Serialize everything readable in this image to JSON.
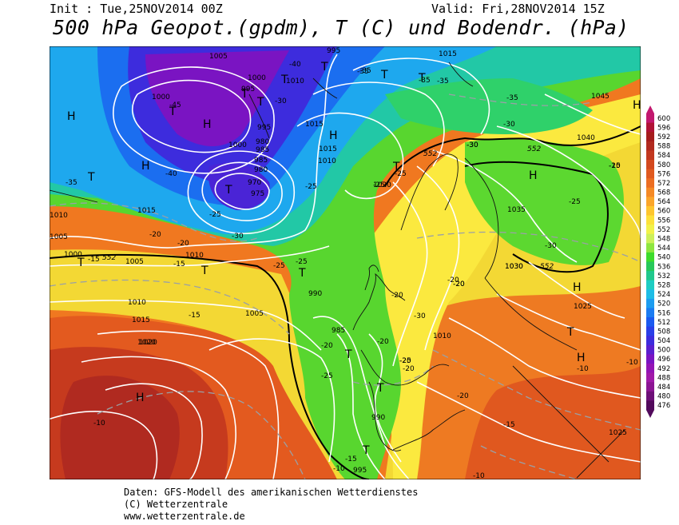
{
  "header": {
    "init": "Init : Tue,25NOV2014 00Z",
    "valid": "Valid: Fri,28NOV2014 15Z",
    "title": "500 hPa Geopot.(gpdm), T (C) und Bodendr. (hPa)"
  },
  "legend": {
    "values": [
      600,
      596,
      592,
      588,
      584,
      580,
      576,
      572,
      568,
      564,
      560,
      556,
      552,
      548,
      544,
      540,
      536,
      532,
      528,
      524,
      520,
      516,
      512,
      508,
      504,
      500,
      496,
      492,
      488,
      484,
      480,
      476
    ],
    "colors": [
      "#c2186e",
      "#b01235",
      "#a51c1c",
      "#b12a1f",
      "#c2381f",
      "#d3491e",
      "#e05a1f",
      "#ec6e22",
      "#f58a25",
      "#fba62a",
      "#fec62e",
      "#fde13a",
      "#f2f24a",
      "#cdf05a",
      "#8ee640",
      "#3ddc2c",
      "#27c95a",
      "#21c98d",
      "#1ecdc3",
      "#1ebde6",
      "#1d9df0",
      "#1b7cf2",
      "#1b5af0",
      "#2a3fe8",
      "#3d2cdd",
      "#5a1fcf",
      "#7a14c2",
      "#9314b5",
      "#a11aa9",
      "#8c1593",
      "#6d0f77",
      "#520a5c"
    ]
  },
  "map": {
    "pressure_labels": [
      "1005",
      "1000",
      "995",
      "1000",
      "995",
      "985",
      "980",
      "975",
      "970",
      "1000",
      "985",
      "980",
      "995",
      "1010",
      "1015",
      "1015",
      "1010",
      "1020",
      "1015",
      "1035",
      "1040",
      "1045",
      "1030",
      "1025",
      "1010",
      "1005",
      "1000",
      "1010",
      "1015",
      "1020",
      "1005",
      "1010",
      "990",
      "985",
      "990",
      "995",
      "1005",
      "1015",
      "1010",
      "1020",
      "1030",
      "1025"
    ],
    "temperature_labels": [
      "-45",
      "-40",
      "-35",
      "-35",
      "-40",
      "-35",
      "-30",
      "-25",
      "-25",
      "-20",
      "-15",
      "-15",
      "-20",
      "-25",
      "-25",
      "-30",
      "-35",
      "-35",
      "-25",
      "-30",
      "-30",
      "-30",
      "-35",
      "-25",
      "-25",
      "-30",
      "-20",
      "-20",
      "-20",
      "-20",
      "-25",
      "-20",
      "-20",
      "-15",
      "-10",
      "-10",
      "-15",
      "-20",
      "-10",
      "-10",
      "-15",
      "-10",
      "-10",
      "-20",
      "-25",
      "-25",
      "-30",
      "-20"
    ],
    "high_markers": [
      "H",
      "H",
      "H",
      "H",
      "H",
      "H",
      "H",
      "H",
      "H"
    ],
    "low_markers": [
      "T",
      "T",
      "T",
      "T",
      "T",
      "T",
      "T",
      "T",
      "T",
      "T",
      "T",
      "T",
      "T",
      "T",
      "T",
      "T",
      "T"
    ],
    "contour_552_labels": [
      "552",
      "552",
      "552",
      "552"
    ]
  },
  "footer": {
    "line1": "Daten: GFS-Modell des amerikanischen Wetterdienstes",
    "line2": "(C) Wetterzentrale",
    "line3": "www.wetterzentrale.de"
  }
}
